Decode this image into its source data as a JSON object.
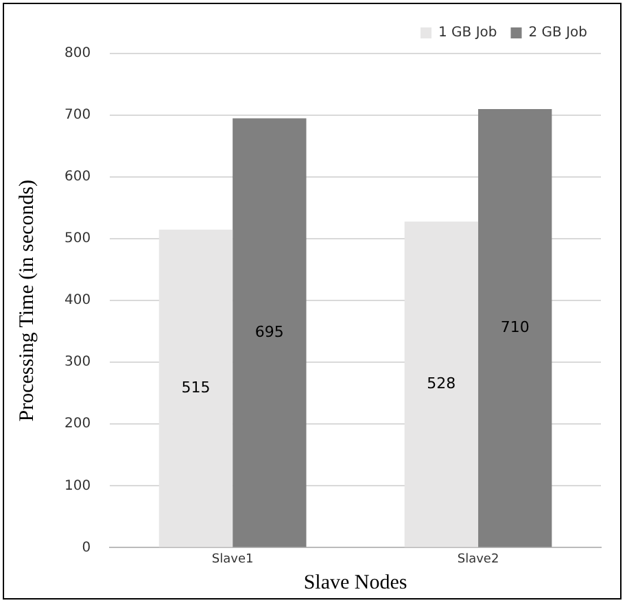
{
  "chart_data": {
    "type": "bar",
    "xlabel": "Slave Nodes",
    "ylabel": "Processing Time (in seconds)",
    "categories": [
      "Slave1",
      "Slave2"
    ],
    "series": [
      {
        "name": "1 GB Job",
        "color": "#e7e6e6",
        "values": [
          515,
          528
        ]
      },
      {
        "name": "2 GB Job",
        "color": "#808080",
        "values": [
          695,
          710
        ]
      }
    ],
    "ylim": [
      0,
      800
    ],
    "yticks": [
      0,
      100,
      200,
      300,
      400,
      500,
      600,
      700,
      800
    ],
    "grid": "y",
    "legend": "top right",
    "data_labels": true
  }
}
